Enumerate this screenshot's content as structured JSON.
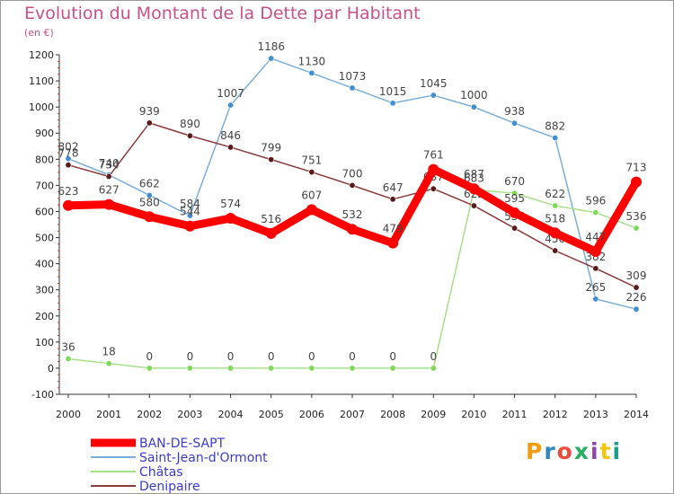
{
  "title": "Evolution du Montant de la Dette par Habitant",
  "unit": "(en €)",
  "logo_letters": [
    "P",
    "r",
    "o",
    "x",
    "i",
    "t",
    "i"
  ],
  "logo_colors": [
    "#f39c12",
    "#2e86c1",
    "#e74c3c",
    "#27ae60",
    "#8e44ad",
    "#f1c40f",
    "#16a085"
  ],
  "chart_data": {
    "type": "line",
    "x": [
      2000,
      2001,
      2002,
      2003,
      2004,
      2005,
      2006,
      2007,
      2008,
      2009,
      2010,
      2011,
      2012,
      2013,
      2014
    ],
    "ylim": [
      -100,
      1200
    ],
    "yticks": [
      -100,
      0,
      100,
      200,
      300,
      400,
      500,
      600,
      700,
      800,
      900,
      1000,
      1100,
      1200
    ],
    "grid": false,
    "legend_position": "bottom",
    "series": [
      {
        "name": "Saint-Jean-d'Ormont",
        "color": "#7aaed8",
        "marker": "#3f8fd2",
        "label_color": "#555555",
        "values": [
          802,
          740,
          662,
          584,
          1007,
          1186,
          1130,
          1073,
          1015,
          1045,
          1000,
          938,
          882,
          265,
          226
        ]
      },
      {
        "name": "Châtas",
        "color": "#a6e08a",
        "marker": "#7ed957",
        "label_color": "#555555",
        "values": [
          36,
          18,
          0,
          0,
          0,
          0,
          0,
          0,
          0,
          0,
          683,
          670,
          622,
          596,
          536
        ]
      },
      {
        "name": "Denipaire",
        "color": "#8b3a3a",
        "marker": "#5b1a1a",
        "label_color": "#555555",
        "values": [
          778,
          734,
          939,
          890,
          846,
          799,
          751,
          700,
          647,
          687,
          622,
          536,
          450,
          382,
          309
        ]
      },
      {
        "name": "BAN-DE-SAPT",
        "color": "#ff0000",
        "marker": "#ff0000",
        "label_color": "#444444",
        "bold": true,
        "values": [
          623,
          627,
          580,
          544,
          574,
          516,
          607,
          532,
          479,
          761,
          687,
          595,
          518,
          447,
          713
        ]
      }
    ],
    "legend": [
      "BAN-DE-SAPT",
      "Saint-Jean-d'Ormont",
      "Châtas",
      "Denipaire"
    ]
  }
}
